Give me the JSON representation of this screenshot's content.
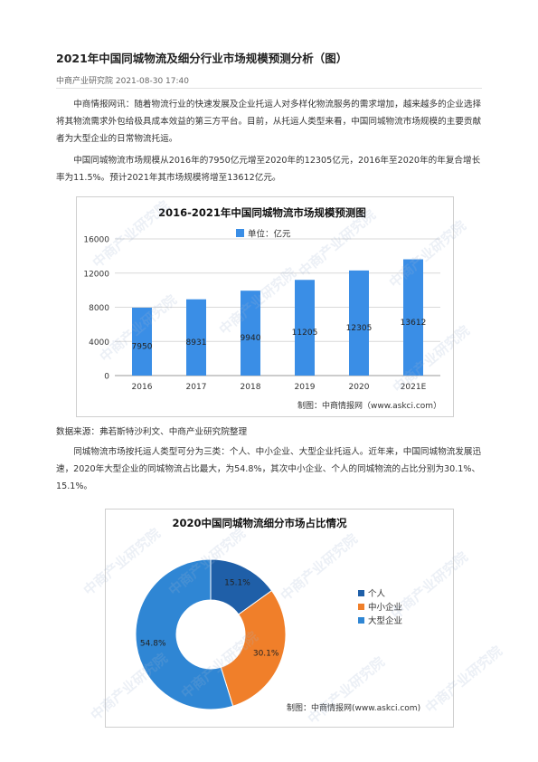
{
  "article": {
    "title": "2021年中国同城物流及细分行业市场规模预测分析（图）",
    "meta": "中商产业研究院 2021-08-30 17:40",
    "paragraphs": [
      "中商情报网讯：随着物流行业的快速发展及企业托运人对多样化物流服务的需求增加，越来越多的企业选择将其物流需求外包给极具成本效益的第三方平台。目前，从托运人类型来看，中国同城物流市场规模的主要贡献者为大型企业的日常物流托运。",
      "中国同城物流市场规模从2016年的7950亿元增至2020年的12305亿元，2016年至2020年的年复合增长率为11.5%。预计2021年其市场规模将增至13612亿元。"
    ],
    "source": "数据来源：弗若斯特沙利文、中商产业研究院整理",
    "paragraph3": "同城物流市场按托运人类型可分为三类：个人、中小企业、大型企业托运人。近年来，中国同城物流发展迅速，2020年大型企业的同城物流占比最大，为54.8%，其次中小企业、个人的同城物流的占比分别为30.1%、15.1%。"
  },
  "watermark": "中商产业研究院",
  "chart_data": [
    {
      "type": "bar",
      "title": "2016-2021年中国同城物流市场规模预测图",
      "legend": "单位：亿元",
      "categories": [
        "2016",
        "2017",
        "2018",
        "2019",
        "2020",
        "2021E"
      ],
      "values": [
        7950,
        8931,
        9940,
        11205,
        12305,
        13612
      ],
      "ylim": [
        0,
        16000
      ],
      "yticks": [
        0,
        4000,
        8000,
        12000,
        16000
      ],
      "grid": true,
      "color": "#3a8ee6",
      "credit": "制图：中商情报网（www.askci.com）"
    },
    {
      "type": "pie",
      "title": "2020中国同城物流细分市场占比情况",
      "labels": [
        "个人",
        "中小企业",
        "大型企业"
      ],
      "values": [
        15.1,
        30.1,
        54.8
      ],
      "value_labels": [
        "15.1%",
        "30.1%",
        "54.8%"
      ],
      "colors": [
        "#1f5fa8",
        "#f07f2a",
        "#2f86d4"
      ],
      "legend_position": "right",
      "credit": "制图：中商情报网(www.askci.com)"
    }
  ]
}
